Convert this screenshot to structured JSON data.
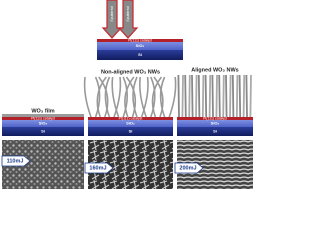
{
  "process_arrows": [
    "Sputtered",
    "Sputtered"
  ],
  "substrate": {
    "layers": [
      "Pt(111) catalyst",
      "SiO₂",
      "Si"
    ]
  },
  "panels": [
    {
      "title": "WO₃ film",
      "layers": [
        "Pt(111) catalyst",
        "SiO₂",
        "Si"
      ],
      "energy": "110mJ"
    },
    {
      "title": "Non-aligned WO₃ NWs",
      "layers": [
        "Pt(111) catalyst",
        "SiO₂",
        "Si"
      ],
      "energy": "160mJ"
    },
    {
      "title": "Aligned WO₃ NWs",
      "layers": [
        "Pt(111) catalyst",
        "SiO₂",
        "Si"
      ],
      "energy": "200mJ"
    }
  ]
}
